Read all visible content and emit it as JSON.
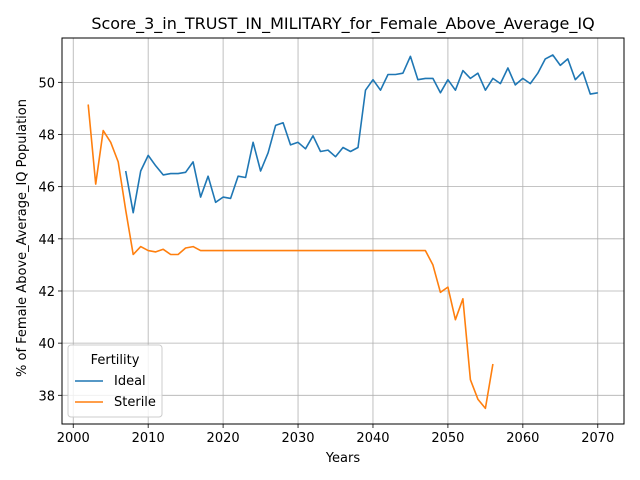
{
  "chart_data": {
    "type": "line",
    "title": "Score_3_in_TRUST_IN_MILITARY_for_Female_Above_Average_IQ",
    "xlabel": "Years",
    "ylabel": "% of Female Above_Average_IQ Population",
    "xlim": [
      1998.5,
      2073.5
    ],
    "ylim": [
      36.9,
      51.7
    ],
    "xticks": [
      2000,
      2010,
      2020,
      2030,
      2040,
      2050,
      2060,
      2070
    ],
    "yticks": [
      38,
      40,
      42,
      44,
      46,
      48,
      50
    ],
    "grid": true,
    "legend": {
      "title": "Fertility",
      "placement": "lower-left"
    },
    "series": [
      {
        "name": "Ideal",
        "color": "#1f77b4",
        "x": [
          2007,
          2008,
          2009,
          2010,
          2011,
          2012,
          2013,
          2014,
          2015,
          2016,
          2017,
          2018,
          2019,
          2020,
          2021,
          2022,
          2023,
          2024,
          2025,
          2026,
          2027,
          2028,
          2029,
          2030,
          2031,
          2032,
          2033,
          2034,
          2035,
          2036,
          2037,
          2038,
          2039,
          2040,
          2041,
          2042,
          2043,
          2044,
          2045,
          2046,
          2047,
          2048,
          2049,
          2050,
          2051,
          2052,
          2053,
          2054,
          2055,
          2056,
          2057,
          2058,
          2059,
          2060,
          2061,
          2062,
          2063,
          2064,
          2065,
          2066,
          2067,
          2068,
          2069,
          2070
        ],
        "values": [
          46.6,
          45.0,
          46.6,
          47.2,
          46.8,
          46.45,
          46.5,
          46.5,
          46.55,
          46.95,
          45.6,
          46.4,
          45.4,
          45.6,
          45.55,
          46.4,
          46.35,
          47.7,
          46.6,
          47.3,
          48.35,
          48.45,
          47.6,
          47.7,
          47.45,
          47.95,
          47.35,
          47.4,
          47.15,
          47.5,
          47.35,
          47.5,
          49.7,
          50.1,
          49.7,
          50.3,
          50.3,
          50.35,
          51.0,
          50.1,
          50.15,
          50.15,
          49.6,
          50.1,
          49.7,
          50.45,
          50.15,
          50.35,
          49.7,
          50.15,
          49.95,
          50.55,
          49.9,
          50.15,
          49.95,
          50.35,
          50.9,
          51.05,
          50.65,
          50.9,
          50.1,
          50.4,
          49.55,
          49.6
        ]
      },
      {
        "name": "Sterile",
        "color": "#ff7f0e",
        "x": [
          2002,
          2003,
          2004,
          2005,
          2006,
          2007,
          2008,
          2009,
          2010,
          2011,
          2012,
          2013,
          2014,
          2015,
          2016,
          2017,
          2018,
          2019,
          2020,
          2021,
          2022,
          2023,
          2024,
          2025,
          2026,
          2027,
          2028,
          2029,
          2030,
          2031,
          2032,
          2033,
          2034,
          2035,
          2036,
          2037,
          2038,
          2039,
          2040,
          2041,
          2042,
          2043,
          2044,
          2045,
          2046,
          2047,
          2048,
          2049,
          2050,
          2051,
          2052,
          2053,
          2054,
          2055,
          2056
        ],
        "values": [
          49.15,
          46.1,
          48.15,
          47.7,
          46.95,
          45.1,
          43.4,
          43.7,
          43.55,
          43.5,
          43.6,
          43.4,
          43.4,
          43.65,
          43.7,
          43.55,
          43.55,
          43.55,
          43.55,
          43.55,
          43.55,
          43.55,
          43.55,
          43.55,
          43.55,
          43.55,
          43.55,
          43.55,
          43.55,
          43.55,
          43.55,
          43.55,
          43.55,
          43.55,
          43.55,
          43.55,
          43.55,
          43.55,
          43.55,
          43.55,
          43.55,
          43.55,
          43.55,
          43.55,
          43.55,
          43.55,
          43.0,
          41.95,
          42.15,
          40.9,
          41.7,
          38.6,
          37.85,
          37.5,
          39.2
        ]
      }
    ]
  }
}
